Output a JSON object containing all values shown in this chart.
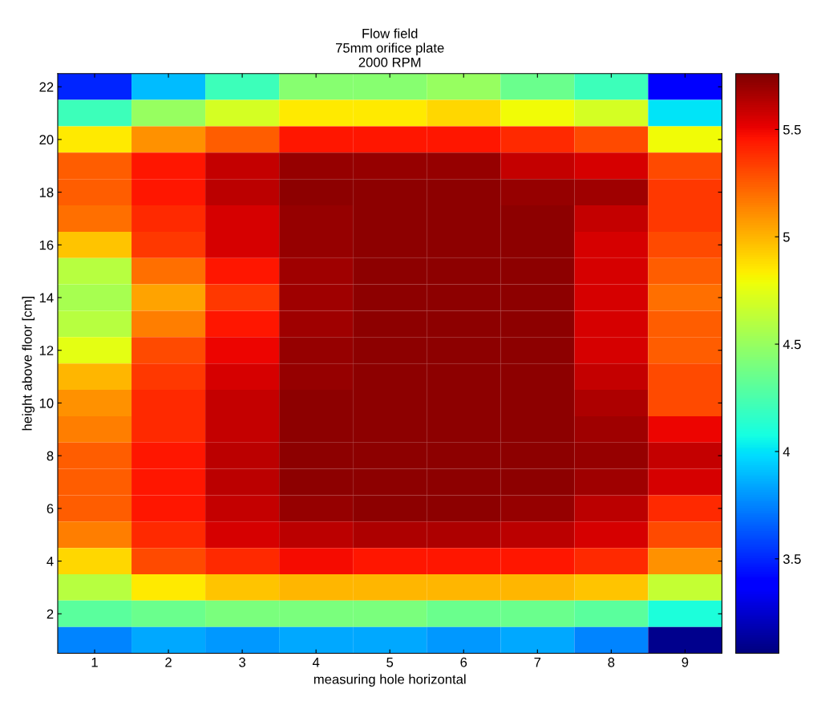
{
  "chart_data": {
    "type": "heatmap",
    "title": "Flow field",
    "subtitle": "75mm orifice plate\n2000 RPM",
    "xlabel": "measuring hole horizontal",
    "ylabel": "height above floor [cm]",
    "categories": [
      "1",
      "2",
      "3",
      "4",
      "5",
      "6",
      "7",
      "8",
      "9"
    ],
    "y_categories": [
      "22",
      null,
      "20",
      null,
      "18",
      null,
      "16",
      null,
      "14",
      null,
      "12",
      null,
      "10",
      null,
      "8",
      null,
      "6",
      null,
      "4",
      null,
      "2",
      null
    ],
    "cells": [
      [
        3.5,
        3.9,
        4.2,
        4.45,
        4.45,
        4.5,
        4.35,
        4.2,
        3.4
      ],
      [
        4.2,
        4.5,
        4.7,
        4.85,
        4.85,
        4.9,
        4.8,
        4.7,
        4.0
      ],
      [
        4.85,
        5.1,
        5.25,
        5.45,
        5.45,
        5.45,
        5.4,
        5.3,
        4.8
      ],
      [
        5.25,
        5.45,
        5.6,
        5.7,
        5.7,
        5.7,
        5.6,
        5.55,
        5.3
      ],
      [
        5.25,
        5.45,
        5.62,
        5.72,
        5.72,
        5.72,
        5.7,
        5.68,
        5.35
      ],
      [
        5.2,
        5.4,
        5.55,
        5.7,
        5.72,
        5.72,
        5.72,
        5.6,
        5.35
      ],
      [
        4.95,
        5.35,
        5.55,
        5.7,
        5.72,
        5.72,
        5.72,
        5.55,
        5.3
      ],
      [
        4.6,
        5.2,
        5.45,
        5.68,
        5.72,
        5.72,
        5.72,
        5.55,
        5.25
      ],
      [
        4.55,
        5.05,
        5.35,
        5.68,
        5.72,
        5.72,
        5.72,
        5.55,
        5.2
      ],
      [
        4.6,
        5.15,
        5.45,
        5.68,
        5.72,
        5.72,
        5.72,
        5.55,
        5.25
      ],
      [
        4.75,
        5.3,
        5.5,
        5.7,
        5.72,
        5.72,
        5.72,
        5.55,
        5.25
      ],
      [
        5.0,
        5.35,
        5.55,
        5.7,
        5.72,
        5.72,
        5.72,
        5.6,
        5.3
      ],
      [
        5.1,
        5.4,
        5.6,
        5.72,
        5.72,
        5.72,
        5.72,
        5.65,
        5.3
      ],
      [
        5.15,
        5.4,
        5.6,
        5.72,
        5.72,
        5.72,
        5.72,
        5.68,
        5.5
      ],
      [
        5.25,
        5.45,
        5.62,
        5.72,
        5.72,
        5.72,
        5.72,
        5.7,
        5.6
      ],
      [
        5.25,
        5.45,
        5.62,
        5.72,
        5.72,
        5.72,
        5.72,
        5.68,
        5.55
      ],
      [
        5.25,
        5.45,
        5.6,
        5.7,
        5.72,
        5.72,
        5.7,
        5.62,
        5.4
      ],
      [
        5.15,
        5.4,
        5.55,
        5.62,
        5.65,
        5.65,
        5.62,
        5.55,
        5.3
      ],
      [
        4.9,
        5.3,
        5.4,
        5.48,
        5.45,
        5.45,
        5.45,
        5.4,
        5.1
      ],
      [
        4.6,
        4.85,
        4.95,
        5.0,
        5.0,
        5.0,
        5.0,
        4.95,
        4.65
      ],
      [
        4.3,
        4.35,
        4.4,
        4.4,
        4.4,
        4.35,
        4.35,
        4.3,
        4.1
      ],
      [
        3.75,
        3.85,
        3.8,
        3.85,
        3.85,
        3.8,
        3.85,
        3.75,
        3.1
      ]
    ],
    "clim": [
      3.06,
      5.76
    ],
    "cticks": [
      3.5,
      4,
      4.5,
      5,
      5.5
    ]
  }
}
